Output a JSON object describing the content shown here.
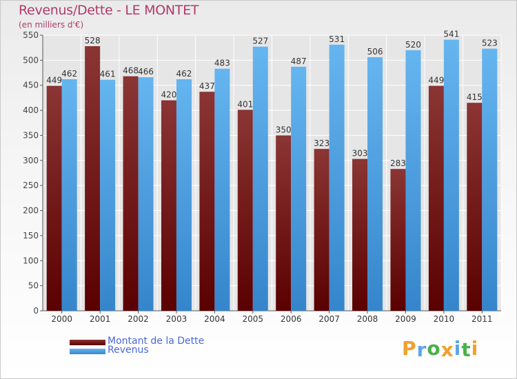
{
  "title": "Revenus/Dette - LE MONTET",
  "subtitle": "(en milliers d'€)",
  "colors": {
    "dette_dark": "#5a0000",
    "dette_light": "#8b3535",
    "revenus_dark": "#3d8fd9",
    "revenus_light": "#65b5f0",
    "title": "#b03a6a",
    "legend_text": "#4a68d8"
  },
  "chart_data": {
    "type": "bar",
    "title": "Revenus/Dette - LE MONTET",
    "ylabel": "(en milliers d'€)",
    "categories": [
      "2000",
      "2001",
      "2002",
      "2003",
      "2004",
      "2005",
      "2006",
      "2007",
      "2008",
      "2009",
      "2010",
      "2011"
    ],
    "series": [
      {
        "name": "Montant de la Dette",
        "values": [
          449,
          528,
          468,
          420,
          437,
          401,
          350,
          323,
          303,
          283,
          449,
          415
        ]
      },
      {
        "name": "Revenus",
        "values": [
          462,
          461,
          466,
          462,
          483,
          527,
          487,
          531,
          506,
          520,
          541,
          523
        ]
      }
    ],
    "ylim": [
      0,
      550
    ],
    "yticks": [
      0,
      50,
      100,
      150,
      200,
      250,
      300,
      350,
      400,
      450,
      500,
      550
    ],
    "grid": true,
    "legend_position": "bottom-left"
  },
  "legend": {
    "items": [
      {
        "label": "Montant de la Dette",
        "color": "#6b0e0e"
      },
      {
        "label": "Revenus",
        "color": "#4fa4e6"
      }
    ]
  },
  "logo": {
    "letters": [
      "P",
      "r",
      "o",
      "x",
      "i",
      "t",
      "i"
    ],
    "colors": [
      "#f2a02a",
      "#5aa7e6",
      "#4ab04a",
      "#f2a02a",
      "#5aa7e6",
      "#4ab04a",
      "#f2a02a"
    ]
  }
}
